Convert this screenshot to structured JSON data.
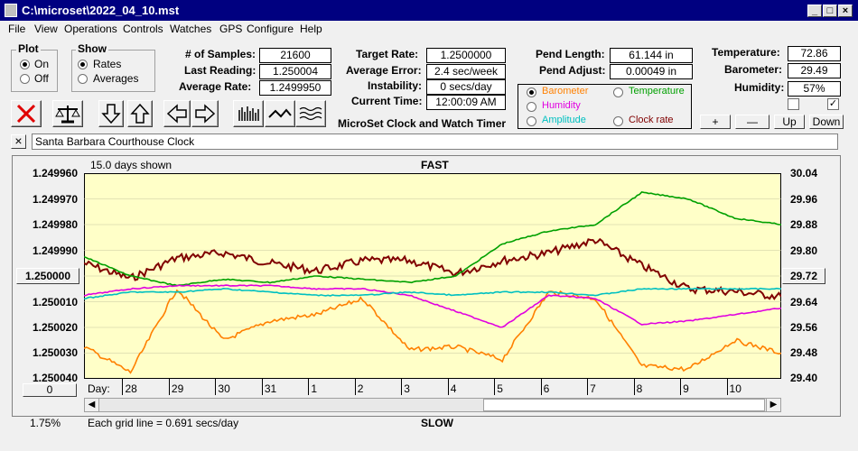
{
  "window": {
    "title": "C:\\microset\\2022_04_10.mst"
  },
  "menu": [
    "File",
    "View",
    "Operations",
    "Controls",
    "Watches",
    "GPS",
    "Configure",
    "Help"
  ],
  "plot_group": {
    "title": "Plot",
    "on": "On",
    "off": "Off",
    "selected": "On"
  },
  "show_group": {
    "title": "Show",
    "rates": "Rates",
    "averages": "Averages",
    "selected": "Rates"
  },
  "stats": {
    "samples_label": "# of Samples:",
    "samples": "21600",
    "last_label": "Last Reading:",
    "last": "1.250004",
    "avg_rate_label": "Average Rate:",
    "avg_rate": "1.2499950",
    "target_label": "Target Rate:",
    "target": "1.2500000",
    "avg_err_label": "Average Error:",
    "avg_err": "2.4 sec/week",
    "instab_label": "Instability:",
    "instab": "0 secs/day",
    "time_label": "Current Time:",
    "time": "12:00:09 AM",
    "pend_len_label": "Pend Length:",
    "pend_len": "61.144 in",
    "pend_adj_label": "Pend Adjust:",
    "pend_adj": "0.00049 in",
    "temp_label": "Temperature:",
    "temp": "72.86",
    "baro_label": "Barometer:",
    "baro": "29.49",
    "humid_label": "Humidity:",
    "humid": "57%"
  },
  "app_caption": "MicroSet Clock and Watch Timer",
  "sensor_radios": [
    {
      "label": "Barometer",
      "color": "#ff8000",
      "selected": true
    },
    {
      "label": "Temperature",
      "color": "#00a000",
      "selected": false
    },
    {
      "label": "Humidity",
      "color": "#e000e0",
      "selected": false
    },
    {
      "label": "Clock rate",
      "color": "#800000",
      "selected": false
    },
    {
      "label": "Amplitude",
      "color": "#00c0c0",
      "selected": false
    }
  ],
  "small_buttons": {
    "plus": "+",
    "minus": "—",
    "up": "Up",
    "down": "Down"
  },
  "checkboxes": [
    {
      "checked": false
    },
    {
      "checked": true
    }
  ],
  "clock_name": "Santa Barbara Courthouse Clock",
  "close_x": "×",
  "chart_header": {
    "days_shown": "15.0 days shown",
    "fast": "FAST",
    "slow": "SLOW"
  },
  "left_axis": [
    "1.249960",
    "1.249970",
    "1.249980",
    "1.249990",
    "1.250000",
    "1.250010",
    "1.250020",
    "1.250030",
    "1.250040"
  ],
  "right_axis": [
    "30.04",
    "29.96",
    "29.88",
    "29.80",
    "29.72",
    "29.64",
    "29.56",
    "29.48",
    "29.40"
  ],
  "left_center_button": "1.250000",
  "right_center_button": "29.72",
  "zero_button": "0",
  "day_label": "Day:",
  "days": [
    "28",
    "29",
    "30",
    "31",
    "1",
    "2",
    "3",
    "4",
    "5",
    "6",
    "7",
    "8",
    "9",
    "10"
  ],
  "footer": {
    "percent": "1.75%",
    "grid_note": "Each grid line = 0.691 secs/day"
  },
  "chart_data": {
    "type": "line",
    "x_days": [
      0,
      1,
      2,
      3,
      4,
      5,
      6,
      7,
      8,
      9,
      10,
      11,
      12,
      13,
      14,
      15
    ],
    "left_ylim": [
      1.24996,
      1.25004
    ],
    "right_ylim": [
      29.4,
      30.04
    ],
    "series": [
      {
        "name": "Clock rate",
        "color": "#800000",
        "axis": "left",
        "values": [
          1.249995,
          1.250001,
          1.249993,
          1.249991,
          1.249995,
          1.249998,
          1.249994,
          1.249994,
          1.249999,
          1.249994,
          1.249991,
          1.249986,
          1.249996,
          1.250005,
          1.250006,
          1.250008
        ]
      },
      {
        "name": "Barometer",
        "color": "#ff8000",
        "axis": "right",
        "values": [
          29.5,
          29.42,
          29.68,
          29.52,
          29.58,
          29.6,
          29.65,
          29.49,
          29.5,
          29.46,
          29.67,
          29.65,
          29.44,
          29.43,
          29.52,
          29.48
        ]
      },
      {
        "name": "Temperature",
        "color": "#00a000",
        "axis": "right",
        "values": [
          29.78,
          29.72,
          29.69,
          29.71,
          29.7,
          29.72,
          29.71,
          29.7,
          29.72,
          29.82,
          29.86,
          29.88,
          29.98,
          29.96,
          29.9,
          29.88
        ]
      },
      {
        "name": "Humidity",
        "color": "#e000e0",
        "axis": "right",
        "values": [
          29.66,
          29.68,
          29.69,
          29.69,
          29.69,
          29.68,
          29.68,
          29.66,
          29.61,
          29.56,
          29.66,
          29.65,
          29.57,
          29.58,
          29.6,
          29.62
        ]
      },
      {
        "name": "Amplitude",
        "color": "#00c0c0",
        "axis": "right",
        "values": [
          29.65,
          29.67,
          29.67,
          29.68,
          29.67,
          29.66,
          29.66,
          29.67,
          29.66,
          29.67,
          29.67,
          29.66,
          29.68,
          29.68,
          29.68,
          29.68
        ]
      }
    ]
  }
}
